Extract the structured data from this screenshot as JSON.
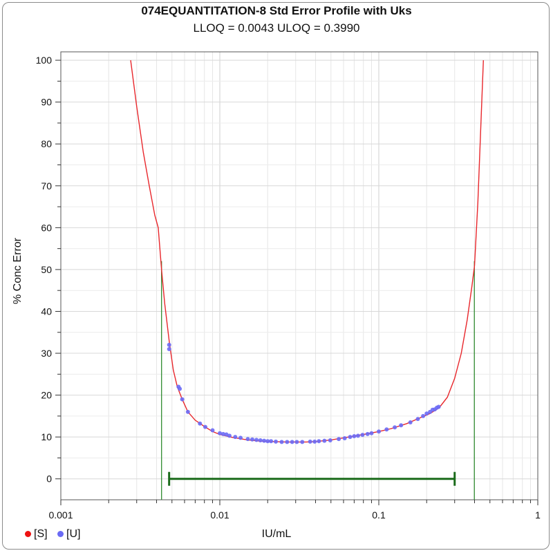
{
  "chart_data": {
    "type": "line",
    "title": "074EQUANTITATION-8 Std Error Profile with Uks",
    "subtitle": "LLOQ = 0.0043  ULOQ = 0.3990",
    "xlabel": "IU/mL",
    "ylabel": "% Conc Error",
    "x_scale": "log",
    "xlim": [
      0.001,
      1
    ],
    "ylim": [
      -5,
      102
    ],
    "x_ticks": [
      {
        "value": 0.001,
        "label": "0.001"
      },
      {
        "value": 0.01,
        "label": "0.01"
      },
      {
        "value": 0.1,
        "label": "0.1"
      },
      {
        "value": 1,
        "label": "1"
      }
    ],
    "y_ticks": [
      {
        "value": 0,
        "label": "0"
      },
      {
        "value": 10,
        "label": "10"
      },
      {
        "value": 20,
        "label": "20"
      },
      {
        "value": 30,
        "label": "30"
      },
      {
        "value": 40,
        "label": "40"
      },
      {
        "value": 50,
        "label": "50"
      },
      {
        "value": 60,
        "label": "60"
      },
      {
        "value": 70,
        "label": "70"
      },
      {
        "value": 80,
        "label": "80"
      },
      {
        "value": 90,
        "label": "90"
      },
      {
        "value": 100,
        "label": "100"
      }
    ],
    "grid": true,
    "colors": {
      "curve": "#e8262b",
      "standards": "#ee1111",
      "unknowns": "#6a6af5",
      "loq_lines": "#2e8b2e",
      "range_bar": "#1a6b1a"
    },
    "curve": {
      "x": [
        0.00275,
        0.003,
        0.0033,
        0.0036,
        0.0039,
        0.0041,
        0.0043,
        0.0045,
        0.0048,
        0.0051,
        0.0054,
        0.0058,
        0.0063,
        0.007,
        0.008,
        0.009,
        0.01,
        0.012,
        0.015,
        0.018,
        0.022,
        0.026,
        0.03,
        0.035,
        0.04,
        0.05,
        0.06,
        0.07,
        0.08,
        0.1,
        0.12,
        0.15,
        0.18,
        0.21,
        0.24,
        0.27,
        0.3,
        0.33,
        0.36,
        0.385,
        0.4,
        0.42,
        0.44,
        0.455
      ],
      "y": [
        100,
        89,
        78,
        70,
        63,
        60,
        50,
        42,
        33,
        26,
        22,
        19,
        16,
        14,
        12.5,
        11.3,
        10.6,
        9.9,
        9.3,
        9.0,
        8.9,
        8.8,
        8.8,
        8.8,
        8.9,
        9.3,
        9.8,
        10.2,
        10.6,
        11.3,
        12.0,
        13.2,
        14.5,
        15.6,
        17.0,
        19.5,
        24,
        30,
        38,
        46,
        51,
        66,
        86,
        100
      ]
    },
    "loq_lines": {
      "x": [
        0.0043,
        0.399
      ]
    },
    "range_bar": {
      "y": 0,
      "x_start": 0.0048,
      "x_end": 0.3
    },
    "series": [
      {
        "name": "[U]",
        "x": [
          0.0048,
          0.0048,
          0.0055,
          0.0056,
          0.0058,
          0.0063,
          0.0075,
          0.0081,
          0.009,
          0.01,
          0.0105,
          0.011,
          0.0115,
          0.0125,
          0.0135,
          0.015,
          0.016,
          0.017,
          0.018,
          0.019,
          0.02,
          0.021,
          0.0225,
          0.0245,
          0.0265,
          0.0285,
          0.0305,
          0.033,
          0.037,
          0.0395,
          0.042,
          0.0455,
          0.0495,
          0.056,
          0.061,
          0.066,
          0.07,
          0.074,
          0.079,
          0.085,
          0.09,
          0.1,
          0.112,
          0.126,
          0.138,
          0.158,
          0.176,
          0.19,
          0.2,
          0.21,
          0.218,
          0.225,
          0.232,
          0.238
        ],
        "y": [
          32,
          31,
          22,
          21.5,
          19,
          16,
          13.2,
          12.4,
          11.6,
          10.9,
          10.7,
          10.6,
          10.3,
          10.0,
          9.8,
          9.5,
          9.4,
          9.3,
          9.2,
          9.1,
          9.0,
          9.0,
          8.9,
          8.8,
          8.8,
          8.8,
          8.8,
          8.8,
          8.9,
          8.9,
          9.0,
          9.1,
          9.2,
          9.5,
          9.7,
          10.0,
          10.2,
          10.3,
          10.5,
          10.7,
          10.9,
          11.3,
          11.8,
          12.3,
          12.8,
          13.5,
          14.3,
          15.0,
          15.6,
          16.0,
          16.5,
          16.6,
          17.0,
          17.2
        ]
      }
    ],
    "legend": {
      "placement": "bottom-left",
      "items": [
        {
          "label": "[S]",
          "color": "#ee1111"
        },
        {
          "label": "[U]",
          "color": "#6a6af5"
        }
      ]
    }
  }
}
